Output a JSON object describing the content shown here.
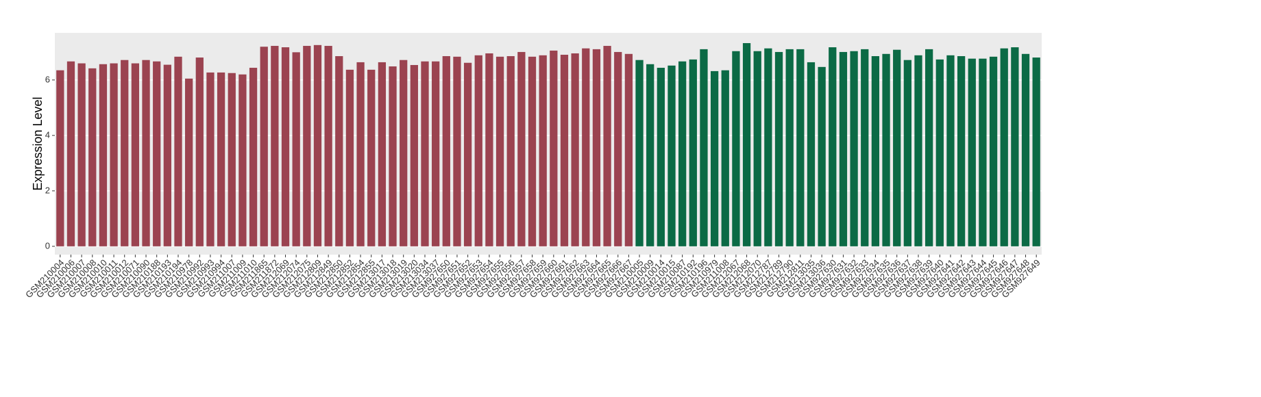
{
  "chart_data": {
    "type": "bar",
    "y_label": "Expression Level",
    "categories": [
      "GSM210004",
      "GSM210006",
      "GSM210007",
      "GSM210008",
      "GSM210010",
      "GSM210011",
      "GSM210012",
      "GSM210071",
      "GSM210090",
      "GSM210188",
      "GSM210193",
      "GSM210194",
      "GSM210978",
      "GSM210992",
      "GSM210993",
      "GSM210994",
      "GSM211007",
      "GSM211009",
      "GSM211010",
      "GSM211865",
      "GSM211872",
      "GSM212069",
      "GSM212074",
      "GSM212075",
      "GSM212809",
      "GSM212849",
      "GSM212850",
      "GSM212852",
      "GSM212854",
      "GSM212855",
      "GSM213017",
      "GSM213018",
      "GSM213019",
      "GSM213020",
      "GSM213034",
      "GSM213037",
      "GSM927650",
      "GSM927651",
      "GSM927652",
      "GSM927653",
      "GSM927654",
      "GSM927655",
      "GSM927656",
      "GSM927657",
      "GSM927658",
      "GSM927659",
      "GSM927660",
      "GSM927661",
      "GSM927662",
      "GSM927663",
      "GSM927664",
      "GSM927665",
      "GSM927666",
      "GSM927667",
      "GSM210005",
      "GSM210009",
      "GSM210014",
      "GSM210015",
      "GSM210087",
      "GSM210192",
      "GSM210196",
      "GSM210979",
      "GSM211008",
      "GSM212067",
      "GSM212068",
      "GSM212070",
      "GSM212787",
      "GSM212789",
      "GSM212790",
      "GSM212811",
      "GSM213035",
      "GSM213036",
      "GSM927630",
      "GSM927631",
      "GSM927632",
      "GSM927633",
      "GSM927634",
      "GSM927635",
      "GSM927636",
      "GSM927637",
      "GSM927638",
      "GSM927639",
      "GSM927640",
      "GSM927641",
      "GSM927642",
      "GSM927643",
      "GSM927644",
      "GSM927645",
      "GSM927646",
      "GSM927647",
      "GSM927648",
      "GSM927649"
    ],
    "values": [
      6.35,
      6.67,
      6.6,
      6.42,
      6.57,
      6.6,
      6.72,
      6.6,
      6.72,
      6.67,
      6.55,
      6.84,
      6.05,
      6.81,
      6.27,
      6.27,
      6.25,
      6.2,
      6.44,
      7.2,
      7.23,
      7.18,
      7.0,
      7.23,
      7.26,
      7.23,
      6.86,
      6.37,
      6.64,
      6.37,
      6.64,
      6.49,
      6.72,
      6.54,
      6.67,
      6.67,
      6.86,
      6.84,
      6.62,
      6.89,
      6.96,
      6.84,
      6.86,
      7.01,
      6.84,
      6.89,
      7.06,
      6.91,
      6.96,
      7.14,
      7.11,
      7.23,
      7.01,
      6.94,
      6.72,
      6.57,
      6.44,
      6.52,
      6.67,
      6.74,
      7.11,
      6.32,
      6.35,
      7.04,
      7.33,
      7.04,
      7.14,
      7.01,
      7.11,
      7.11,
      6.64,
      6.47,
      7.18,
      7.01,
      7.04,
      7.11,
      6.86,
      6.94,
      7.09,
      6.72,
      6.89,
      7.11,
      6.74,
      6.89,
      6.86,
      6.77,
      6.77,
      6.84,
      7.14,
      7.18,
      6.94,
      6.81
    ],
    "colors": [
      "#9b4350",
      "#9b4350",
      "#9b4350",
      "#9b4350",
      "#9b4350",
      "#9b4350",
      "#9b4350",
      "#9b4350",
      "#9b4350",
      "#9b4350",
      "#9b4350",
      "#9b4350",
      "#9b4350",
      "#9b4350",
      "#9b4350",
      "#9b4350",
      "#9b4350",
      "#9b4350",
      "#9b4350",
      "#9b4350",
      "#9b4350",
      "#9b4350",
      "#9b4350",
      "#9b4350",
      "#9b4350",
      "#9b4350",
      "#9b4350",
      "#9b4350",
      "#9b4350",
      "#9b4350",
      "#9b4350",
      "#9b4350",
      "#9b4350",
      "#9b4350",
      "#9b4350",
      "#9b4350",
      "#9b4350",
      "#9b4350",
      "#9b4350",
      "#9b4350",
      "#9b4350",
      "#9b4350",
      "#9b4350",
      "#9b4350",
      "#9b4350",
      "#9b4350",
      "#9b4350",
      "#9b4350",
      "#9b4350",
      "#9b4350",
      "#9b4350",
      "#9b4350",
      "#9b4350",
      "#9b4350",
      "#0b6a45",
      "#0b6a45",
      "#0b6a45",
      "#0b6a45",
      "#0b6a45",
      "#0b6a45",
      "#0b6a45",
      "#0b6a45",
      "#0b6a45",
      "#0b6a45",
      "#0b6a45",
      "#0b6a45",
      "#0b6a45",
      "#0b6a45",
      "#0b6a45",
      "#0b6a45",
      "#0b6a45",
      "#0b6a45",
      "#0b6a45",
      "#0b6a45",
      "#0b6a45",
      "#0b6a45",
      "#0b6a45",
      "#0b6a45",
      "#0b6a45",
      "#0b6a45",
      "#0b6a45",
      "#0b6a45",
      "#0b6a45",
      "#0b6a45",
      "#0b6a45",
      "#0b6a45",
      "#0b6a45",
      "#0b6a45",
      "#0b6a45",
      "#0b6a45",
      "#0b6a45",
      "#0b6a45"
    ],
    "ylim": [
      -0.3,
      7.7
    ],
    "yticks": [
      0,
      2,
      4,
      6
    ],
    "grid": true
  }
}
